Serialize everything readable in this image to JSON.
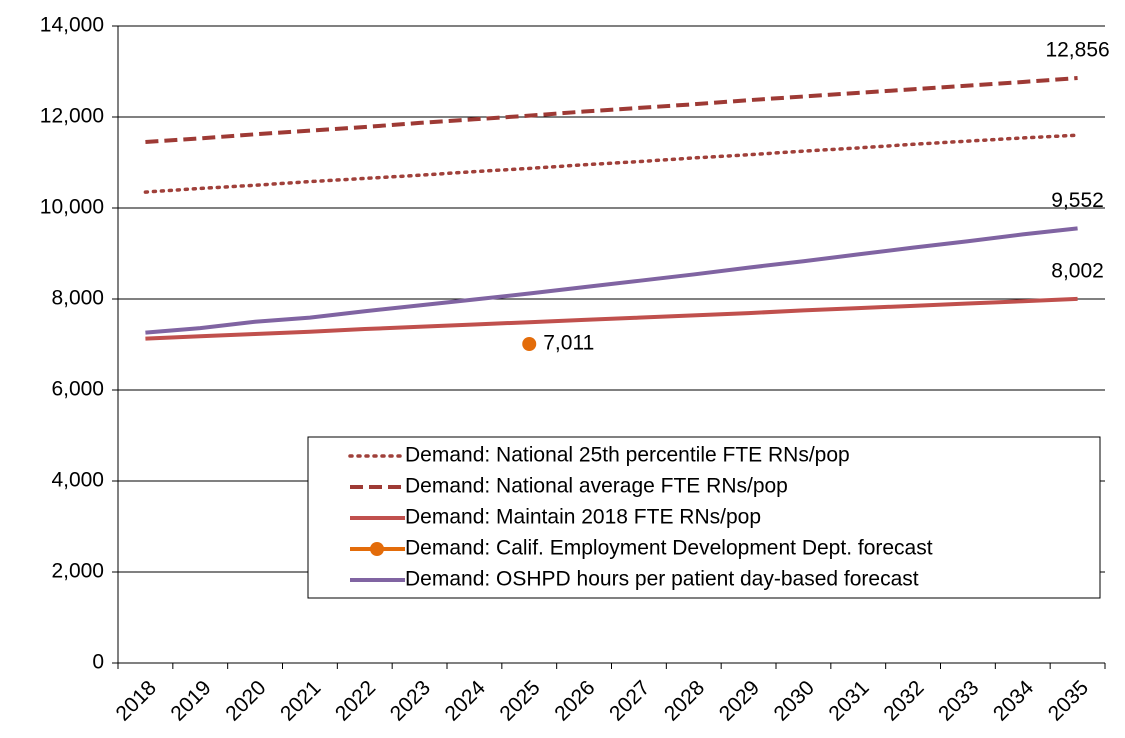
{
  "chart_data": {
    "type": "line",
    "categories": [
      "2018",
      "2019",
      "2020",
      "2021",
      "2022",
      "2023",
      "2024",
      "2025",
      "2026",
      "2027",
      "2028",
      "2029",
      "2030",
      "2031",
      "2032",
      "2033",
      "2034",
      "2035"
    ],
    "series": [
      {
        "name": "Demand: National 25th percentile FTE RNs/pop",
        "color": "#a0403a",
        "style": "dotted",
        "values": [
          10350,
          10430,
          10500,
          10580,
          10650,
          10720,
          10800,
          10870,
          10950,
          11020,
          11100,
          11170,
          11250,
          11320,
          11400,
          11470,
          11540,
          11600
        ]
      },
      {
        "name": "Demand: National average FTE RNs/pop",
        "color": "#9e3a35",
        "style": "dashed",
        "values": [
          11450,
          11530,
          11620,
          11700,
          11780,
          11870,
          11950,
          12030,
          12120,
          12200,
          12280,
          12370,
          12450,
          12530,
          12610,
          12690,
          12770,
          12856
        ],
        "value_labels": [
          null,
          null,
          null,
          null,
          null,
          null,
          null,
          null,
          null,
          null,
          null,
          null,
          null,
          null,
          null,
          null,
          null,
          "12,856"
        ]
      },
      {
        "name": "Demand: Maintain 2018 FTE RNs/pop",
        "color": "#c0504d",
        "style": "solid",
        "values": [
          7130,
          7180,
          7230,
          7280,
          7340,
          7390,
          7440,
          7490,
          7540,
          7590,
          7640,
          7690,
          7750,
          7800,
          7850,
          7900,
          7950,
          8002
        ],
        "value_labels": [
          null,
          null,
          null,
          null,
          null,
          null,
          null,
          null,
          null,
          null,
          null,
          null,
          null,
          null,
          null,
          null,
          null,
          "8,002"
        ]
      },
      {
        "name": "Demand: Calif. Employment Development Dept. forecast",
        "color": "#e36c0a",
        "style": "solid",
        "marker": "circle",
        "values": [
          null,
          null,
          null,
          null,
          null,
          null,
          null,
          7011,
          null,
          null,
          null,
          null,
          null,
          null,
          null,
          null,
          null,
          null
        ],
        "value_labels": [
          null,
          null,
          null,
          null,
          null,
          null,
          null,
          "7,011",
          null,
          null,
          null,
          null,
          null,
          null,
          null,
          null,
          null,
          null
        ]
      },
      {
        "name": "Demand: OSHPD hours per patient day-based forecast",
        "color": "#8064a2",
        "style": "solid",
        "values": [
          7260,
          7360,
          7500,
          7590,
          7730,
          7860,
          7990,
          8120,
          8260,
          8400,
          8540,
          8690,
          8830,
          8980,
          9130,
          9270,
          9420,
          9552
        ],
        "value_labels": [
          null,
          null,
          null,
          null,
          null,
          null,
          null,
          null,
          null,
          null,
          null,
          null,
          null,
          null,
          null,
          null,
          null,
          "9,552"
        ]
      }
    ],
    "ylim": [
      0,
      14000
    ],
    "yticks": [
      0,
      {
        "value": 2000,
        "label": "2,000"
      },
      {
        "value": 4000,
        "label": "4,000"
      },
      {
        "value": 6000,
        "label": "6,000"
      },
      {
        "value": 8000,
        "label": "8,000"
      },
      {
        "value": 10000,
        "label": "10,000"
      },
      {
        "value": 12000,
        "label": "12,000"
      },
      {
        "value": 14000,
        "label": "14,000"
      }
    ],
    "grid": true
  }
}
